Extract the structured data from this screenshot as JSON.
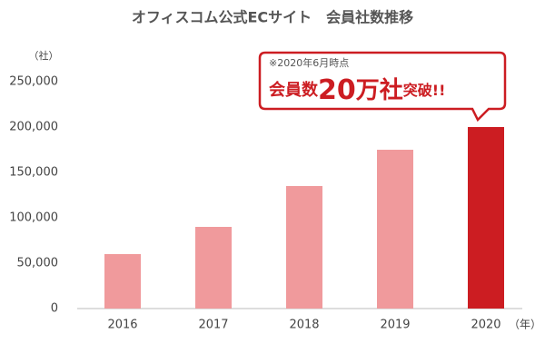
{
  "chart_data": {
    "type": "bar",
    "title": "オフィスコム公式ECサイト　会員社数推移",
    "y_unit": "（社）",
    "x_unit": "（年）",
    "categories": [
      "2016",
      "2017",
      "2018",
      "2019",
      "2020"
    ],
    "values": [
      60000,
      90000,
      135000,
      175000,
      200000
    ],
    "colors": [
      "#f09a9c",
      "#f09a9c",
      "#f09a9c",
      "#f09a9c",
      "#cc1d22"
    ],
    "ylim": [
      0,
      250000
    ],
    "yticks": [
      0,
      {
        "value": 50000,
        "label": "50,000"
      },
      {
        "value": 100000,
        "label": "100,000"
      },
      {
        "value": 150000,
        "label": "150,000"
      },
      {
        "value": 200000,
        "label": "200,000"
      },
      {
        "value": 250000,
        "label": "250,000"
      }
    ],
    "grid": false,
    "callout": {
      "note": "※2020年6月時点",
      "parts": [
        "会員数",
        "20",
        "万社",
        "突破!!"
      ]
    }
  }
}
